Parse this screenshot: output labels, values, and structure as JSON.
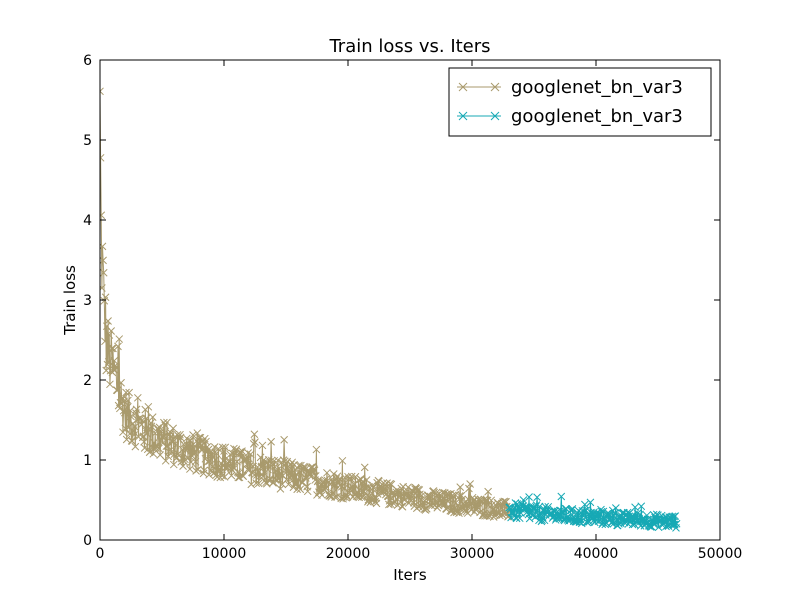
{
  "chart_data": {
    "type": "line",
    "title": "Train loss  vs. Iters",
    "xlabel": "Iters",
    "ylabel": "Train loss",
    "xlim": [
      0,
      50000
    ],
    "ylim": [
      0,
      6
    ],
    "xticks": [
      0,
      10000,
      20000,
      30000,
      40000,
      50000
    ],
    "yticks": [
      0,
      1,
      2,
      3,
      4,
      5,
      6
    ],
    "grid": false,
    "legend_position": "top-right",
    "marker": "x",
    "series": [
      {
        "name": "googlenet_bn_var3",
        "color": "#a99a6d",
        "x": [
          0,
          100,
          200,
          300,
          400,
          500,
          700,
          1000,
          1300,
          1600,
          2000,
          2500,
          3000,
          3500,
          4000,
          5000,
          6000,
          7000,
          8000,
          9000,
          10000,
          11000,
          12000,
          13000,
          14000,
          15000,
          16000,
          17000,
          18000,
          19000,
          20000,
          21000,
          22000,
          23000,
          24000,
          25000,
          26000,
          27000,
          28000,
          29000,
          30000,
          31000,
          32000,
          33000
        ],
        "y": [
          5.3,
          3.8,
          3.4,
          3.0,
          2.8,
          2.5,
          2.3,
          2.15,
          2.0,
          1.8,
          1.6,
          1.5,
          1.45,
          1.38,
          1.32,
          1.25,
          1.18,
          1.12,
          1.06,
          1.02,
          0.98,
          0.94,
          0.9,
          0.87,
          0.84,
          0.81,
          0.78,
          0.75,
          0.72,
          0.69,
          0.66,
          0.63,
          0.61,
          0.58,
          0.56,
          0.54,
          0.51,
          0.49,
          0.47,
          0.45,
          0.43,
          0.41,
          0.39,
          0.37
        ]
      },
      {
        "name": "googlenet_bn_var3",
        "color": "#17a9b5",
        "x": [
          33000,
          34000,
          35000,
          36000,
          37000,
          38000,
          39000,
          40000,
          41000,
          42000,
          43000,
          44000,
          45000,
          46000,
          46500
        ],
        "y": [
          0.37,
          0.35,
          0.34,
          0.32,
          0.31,
          0.3,
          0.29,
          0.28,
          0.27,
          0.26,
          0.26,
          0.25,
          0.24,
          0.23,
          0.23
        ]
      }
    ]
  }
}
